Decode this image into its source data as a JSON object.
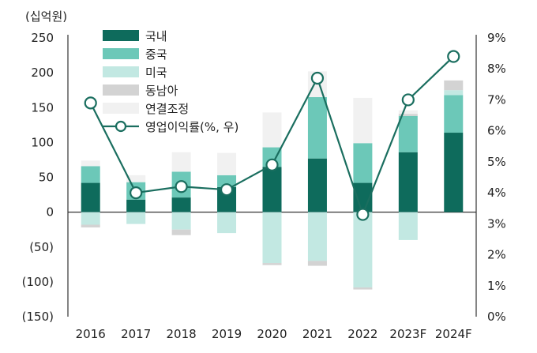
{
  "chart_data": {
    "type": "bar",
    "categories": [
      "2016",
      "2017",
      "2018",
      "2019",
      "2020",
      "2021",
      "2022",
      "2023F",
      "2024F"
    ],
    "unit_label": "(십억원)",
    "ylim_left": [
      -150,
      250
    ],
    "yticks_left": [
      "250",
      "200",
      "150",
      "100",
      "50",
      "0",
      "(50)",
      "(100)",
      "(150)"
    ],
    "ylim_right": [
      0,
      9
    ],
    "yticks_right": [
      "9%",
      "8%",
      "7%",
      "6%",
      "5%",
      "4%",
      "3%",
      "2%",
      "1%",
      "0%"
    ],
    "stacked": true,
    "legend_placement": "top-left",
    "series": [
      {
        "name": "국내",
        "color": "#0e6b5c",
        "values": [
          42,
          18,
          21,
          36,
          65,
          77,
          42,
          86,
          114
        ]
      },
      {
        "name": "중국",
        "color": "#6cc8b8",
        "values": [
          24,
          25,
          37,
          17,
          28,
          88,
          57,
          52,
          54
        ]
      },
      {
        "name": "미국",
        "color": "#c2e8e2",
        "values": [
          -18,
          -17,
          -25,
          -30,
          -73,
          -70,
          -108,
          -40,
          7
        ]
      },
      {
        "name": "동남아",
        "color": "#d3d3d3",
        "values": [
          -4,
          0,
          -8,
          0,
          -3,
          -7,
          -3,
          3,
          14
        ]
      },
      {
        "name": "연결조정",
        "color": "#f1f1f1",
        "values": [
          8,
          10,
          28,
          32,
          50,
          37,
          65,
          5,
          0
        ]
      }
    ],
    "line_series": {
      "name": "영업이익률(%, 우)",
      "color": "#1a6e5f",
      "axis": "right",
      "values": [
        6.9,
        4.0,
        4.2,
        4.1,
        4.9,
        7.7,
        3.3,
        7.0,
        8.4
      ]
    }
  }
}
